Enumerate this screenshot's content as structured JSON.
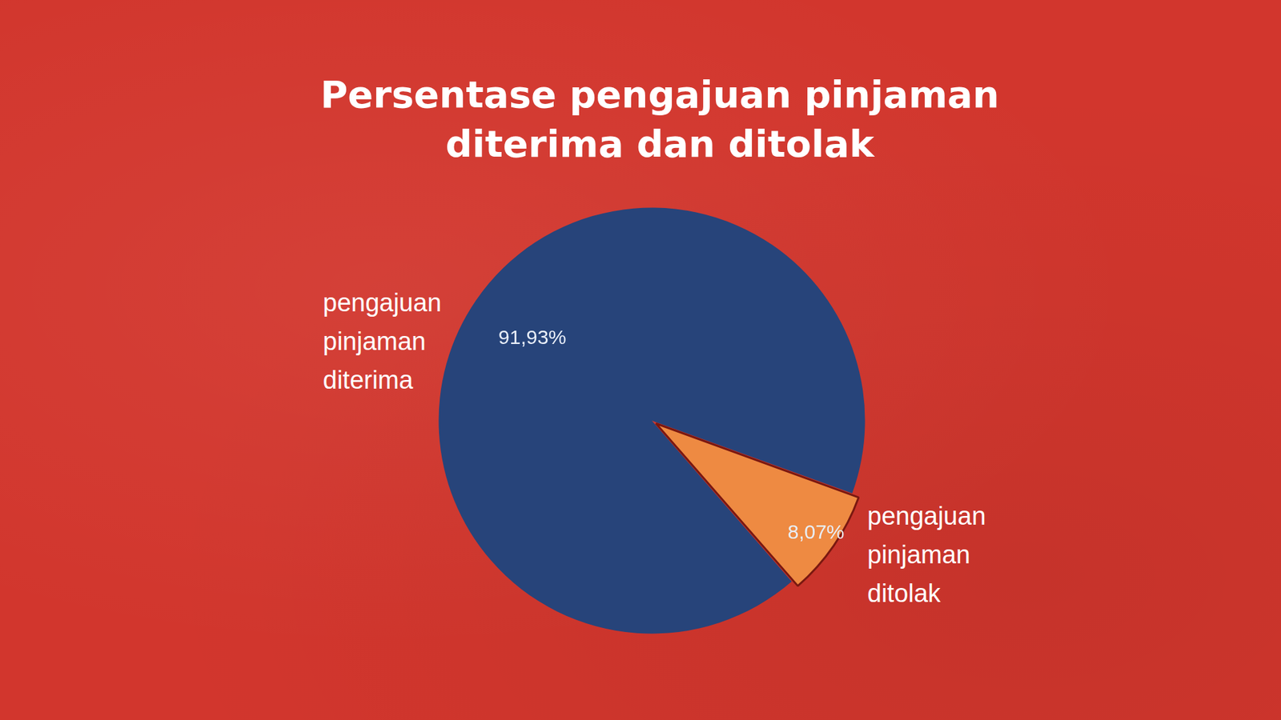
{
  "chart_data": {
    "type": "pie",
    "title": "Persentase pengajuan pinjaman diterima dan ditolak",
    "categories": [
      "pengajuan pinjaman diterima",
      "pengajuan pinjaman ditolak"
    ],
    "values": [
      91.93,
      8.07
    ],
    "value_labels": [
      "91,93%",
      "8,07%"
    ],
    "colors": [
      "#27447a",
      "#ee8a42"
    ],
    "data_labels": true,
    "legend": false
  }
}
